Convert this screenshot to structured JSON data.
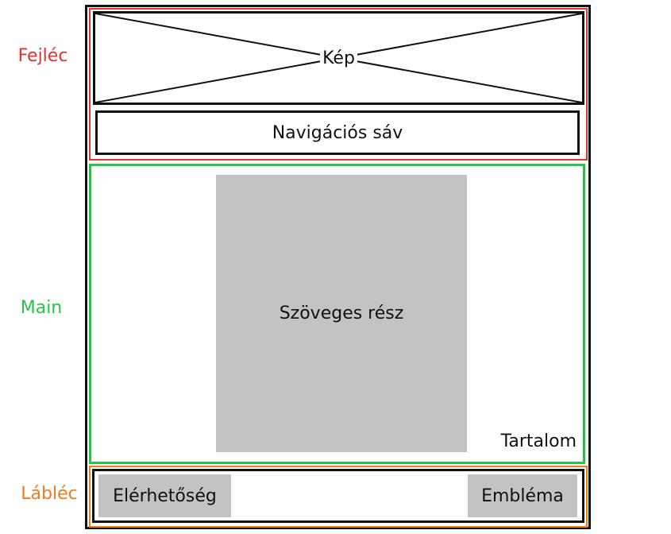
{
  "labels": {
    "header": "Fejléc",
    "main": "Main",
    "footer": "Lábléc"
  },
  "header": {
    "image": "Kép",
    "nav": "Navigációs sáv"
  },
  "main": {
    "text_part": "Szöveges rész",
    "content": "Tartalom"
  },
  "footer": {
    "contact": "Elérhetőség",
    "logo": "Embléma"
  },
  "colors": {
    "header_border": "#e8302f",
    "main_border": "#26c24a",
    "footer_border": "#f07b1e",
    "block_fill": "#c3c3c3",
    "outline": "#111111"
  }
}
